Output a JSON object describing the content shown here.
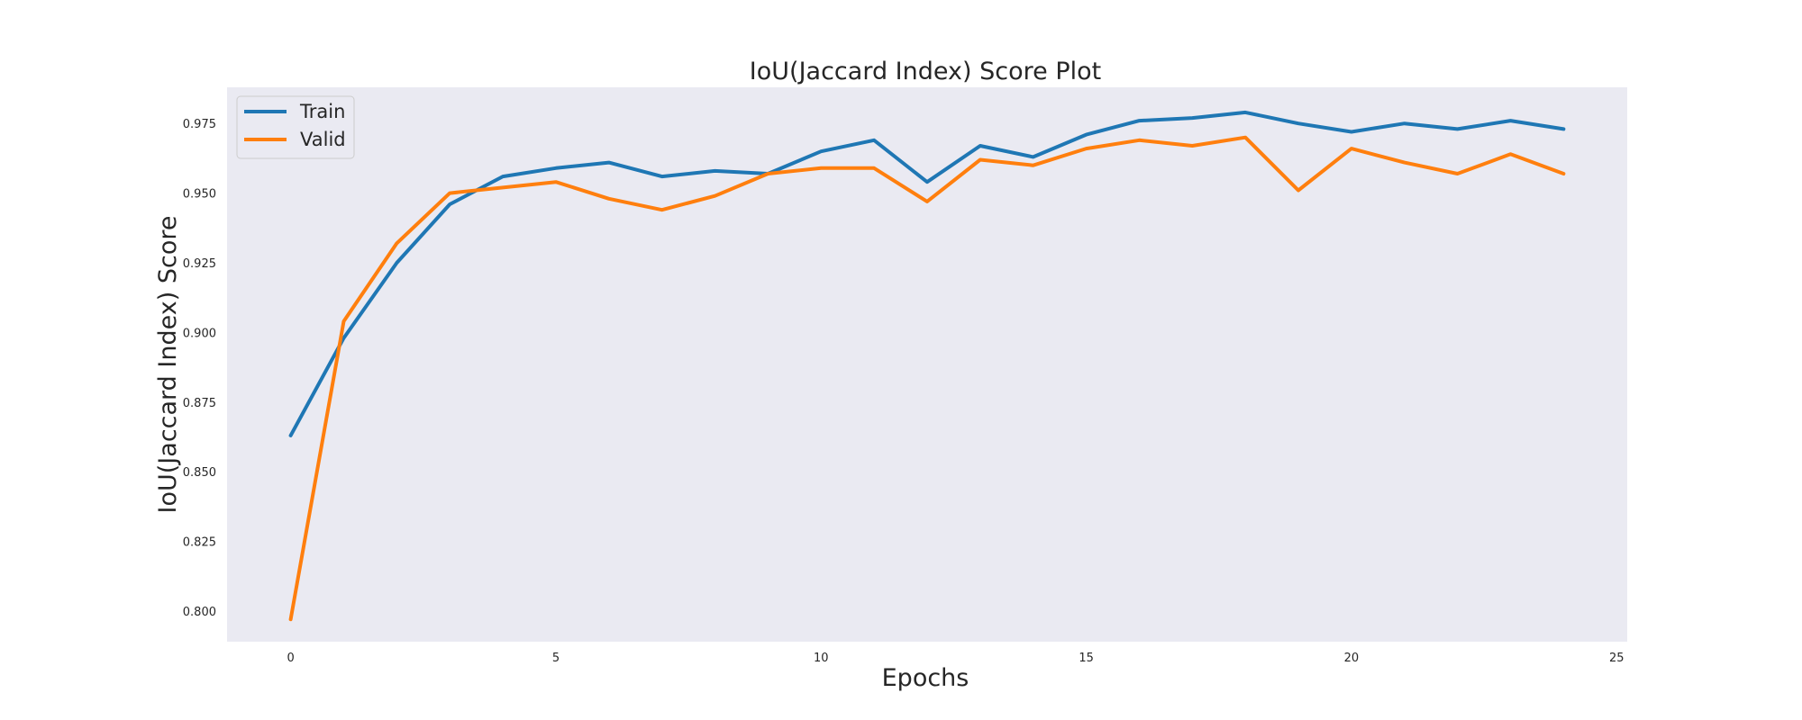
{
  "chart_data": {
    "type": "line",
    "title": "IoU(Jaccard Index) Score Plot",
    "xlabel": "Epochs",
    "ylabel": "IoU(Jaccard Index) Score",
    "xlim": [
      -1.2,
      25.2
    ],
    "ylim": [
      0.789,
      0.988
    ],
    "xticks": [
      0,
      5,
      10,
      15,
      20,
      25
    ],
    "yticks": [
      0.8,
      0.825,
      0.85,
      0.875,
      0.9,
      0.925,
      0.95,
      0.975
    ],
    "ytick_labels": [
      "0.800",
      "0.825",
      "0.850",
      "0.875",
      "0.900",
      "0.925",
      "0.950",
      "0.975"
    ],
    "grid": false,
    "legend_position": "top-left",
    "background_color": "#eaeaf2",
    "x": [
      0,
      1,
      2,
      3,
      4,
      5,
      6,
      7,
      8,
      9,
      10,
      11,
      12,
      13,
      14,
      15,
      16,
      17,
      18,
      19,
      20,
      21,
      22,
      23,
      24
    ],
    "series": [
      {
        "name": "Train",
        "color": "#1f77b4",
        "values": [
          0.863,
          0.898,
          0.925,
          0.946,
          0.956,
          0.959,
          0.961,
          0.956,
          0.958,
          0.957,
          0.965,
          0.969,
          0.954,
          0.967,
          0.963,
          0.971,
          0.976,
          0.977,
          0.979,
          0.975,
          0.972,
          0.975,
          0.973,
          0.976,
          0.973
        ]
      },
      {
        "name": "Valid",
        "color": "#ff7f0e",
        "values": [
          0.797,
          0.904,
          0.932,
          0.95,
          0.952,
          0.954,
          0.948,
          0.944,
          0.949,
          0.957,
          0.959,
          0.959,
          0.947,
          0.962,
          0.96,
          0.966,
          0.969,
          0.967,
          0.97,
          0.951,
          0.966,
          0.961,
          0.957,
          0.964,
          0.957
        ]
      }
    ]
  }
}
